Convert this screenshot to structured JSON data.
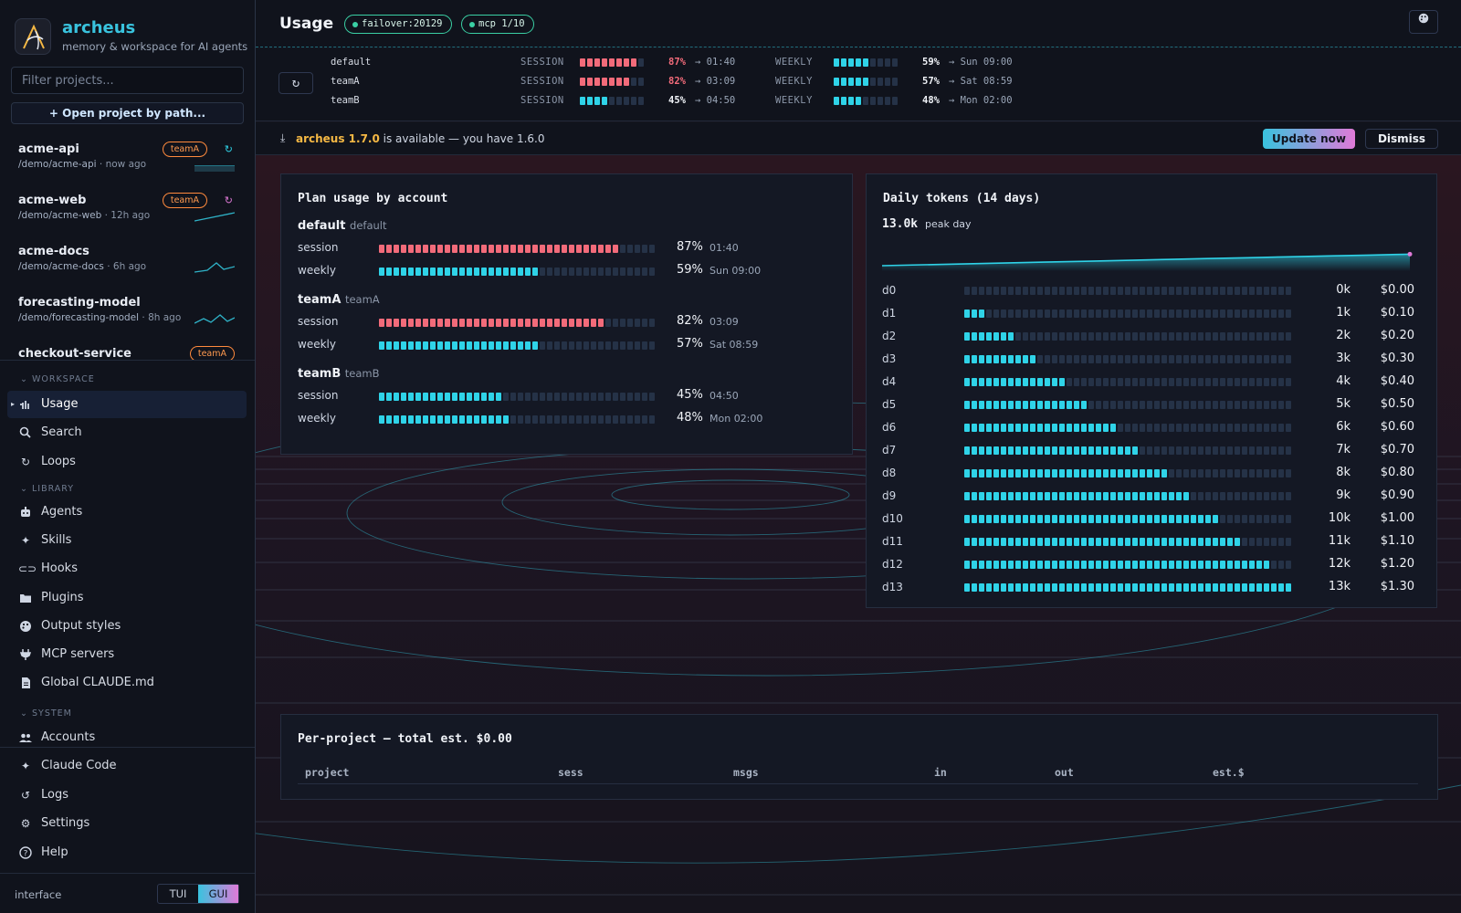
{
  "app": {
    "name": "archeus",
    "tagline": "memory & workspace for AI agents",
    "accent": "#39c3de",
    "accent2": "#e07ad8"
  },
  "sidebar": {
    "filter_placeholder": "Filter projects...",
    "open_project_label": "+ Open project by path...",
    "projects": [
      {
        "name": "acme-api",
        "path": "/demo/acme-api",
        "ago": "· now ago",
        "badge": "teamA",
        "refresh": true,
        "spark": "flat"
      },
      {
        "name": "acme-web",
        "path": "/demo/acme-web",
        "ago": "· 12h ago",
        "badge": "teamA",
        "refresh": true,
        "spark": "rise"
      },
      {
        "name": "acme-docs",
        "path": "/demo/acme-docs",
        "ago": "· 6h ago",
        "badge": "",
        "refresh": false,
        "spark": "peak"
      },
      {
        "name": "forecasting-model",
        "path": "/demo/forecasting-model",
        "ago": "· 8h ago",
        "badge": "",
        "refresh": false,
        "spark": "zigzag"
      },
      {
        "name": "checkout-service",
        "path": "",
        "ago": "",
        "badge": "teamA",
        "refresh": false,
        "spark": "none"
      }
    ],
    "sections": {
      "workspace": "WORKSPACE",
      "library": "LIBRARY",
      "system": "SYSTEM"
    },
    "nav": {
      "usage": "Usage",
      "search": "Search",
      "loops": "Loops",
      "agents": "Agents",
      "skills": "Skills",
      "hooks": "Hooks",
      "plugins": "Plugins",
      "output_styles": "Output styles",
      "mcp_servers": "MCP servers",
      "global_claude": "Global CLAUDE.md",
      "accounts": "Accounts",
      "claude_code": "Claude Code",
      "logs": "Logs",
      "settings": "Settings",
      "help": "Help"
    },
    "interface_label": "interface",
    "interface_options": [
      "TUI",
      "GUI"
    ],
    "interface_selected": "GUI"
  },
  "header": {
    "title": "Usage",
    "pills": [
      "failover:20129",
      "mcp 1/10"
    ]
  },
  "quota": {
    "session_label": "SESSION",
    "weekly_label": "WEEKLY",
    "rows": [
      {
        "name": "default",
        "session_pct": 87,
        "session_text": "87%",
        "session_reset": "→ 01:40",
        "weekly_pct": 59,
        "weekly_text": "59%",
        "weekly_reset": "→ Sun 09:00"
      },
      {
        "name": "teamA",
        "session_pct": 82,
        "session_text": "82%",
        "session_reset": "→ 03:09",
        "weekly_pct": 57,
        "weekly_text": "57%",
        "weekly_reset": "→ Sat 08:59"
      },
      {
        "name": "teamB",
        "session_pct": 45,
        "session_text": "45%",
        "session_reset": "→ 04:50",
        "weekly_pct": 48,
        "weekly_text": "48%",
        "weekly_reset": "→ Mon 02:00"
      }
    ]
  },
  "update": {
    "version": "archeus 1.7.0",
    "message": " is available — you have 1.6.0",
    "update_label": "Update now",
    "dismiss_label": "Dismiss"
  },
  "plan_usage": {
    "title": "Plan usage by account",
    "session_label": "session",
    "weekly_label": "weekly",
    "accounts": [
      {
        "name": "default",
        "alias": "default",
        "session_pct": 87,
        "session_text": "87%",
        "session_reset": "01:40",
        "weekly_pct": 59,
        "weekly_text": "59%",
        "weekly_reset": "Sun 09:00"
      },
      {
        "name": "teamA",
        "alias": "teamA",
        "session_pct": 82,
        "session_text": "82%",
        "session_reset": "03:09",
        "weekly_pct": 57,
        "weekly_text": "57%",
        "weekly_reset": "Sat 08:59"
      },
      {
        "name": "teamB",
        "alias": "teamB",
        "session_pct": 45,
        "session_text": "45%",
        "session_reset": "04:50",
        "weekly_pct": 48,
        "weekly_text": "48%",
        "weekly_reset": "Mon 02:00"
      }
    ],
    "high_color": "#f26b7a",
    "normal_color": "#2fd3e8",
    "empty_color": "#253247"
  },
  "chart_data": {
    "type": "bar",
    "title": "Daily tokens (14 days)",
    "peak_value": "13.0k",
    "peak_label": "peak day",
    "categories": [
      "d0",
      "d1",
      "d2",
      "d3",
      "d4",
      "d5",
      "d6",
      "d7",
      "d8",
      "d9",
      "d10",
      "d11",
      "d12",
      "d13"
    ],
    "series": [
      {
        "values": [
          0,
          1000,
          2000,
          3000,
          4000,
          5000,
          6000,
          7000,
          8000,
          9000,
          10000,
          11000,
          12000,
          13000
        ]
      }
    ],
    "value_labels": [
      "0k",
      "1k",
      "2k",
      "3k",
      "4k",
      "5k",
      "6k",
      "7k",
      "8k",
      "9k",
      "10k",
      "11k",
      "12k",
      "13k"
    ],
    "cost_labels": [
      "$0.00",
      "$0.10",
      "$0.20",
      "$0.30",
      "$0.40",
      "$0.50",
      "$0.60",
      "$0.70",
      "$0.80",
      "$0.90",
      "$1.00",
      "$1.10",
      "$1.20",
      "$1.30"
    ],
    "max": 13000,
    "color": "#2fd3e8"
  },
  "per_project": {
    "title": "Per-project — total est. $0.00",
    "columns": [
      "project",
      "sess",
      "msgs",
      "in",
      "out",
      "est.$"
    ]
  }
}
